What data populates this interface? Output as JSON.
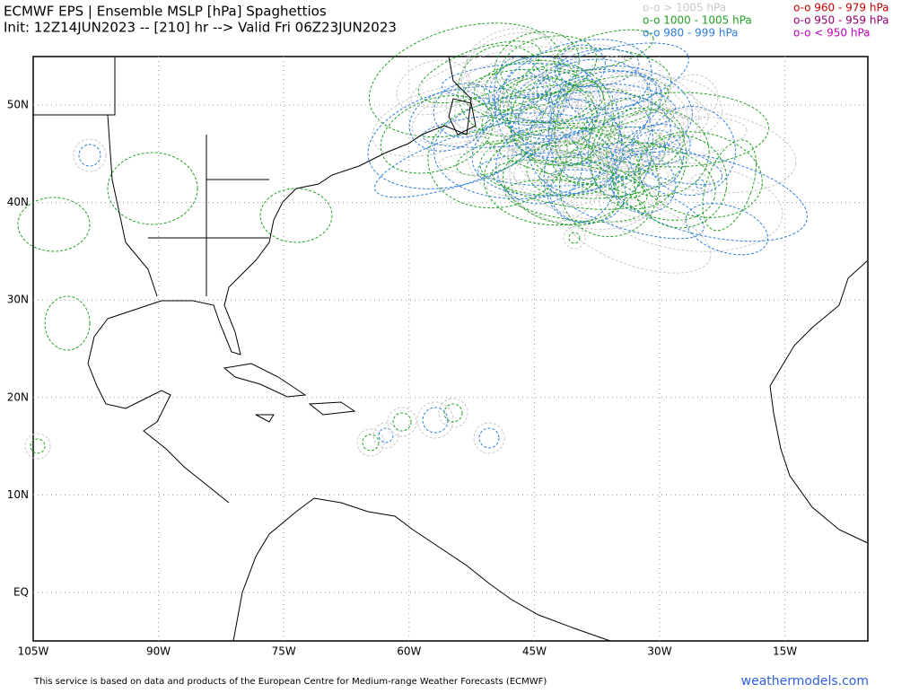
{
  "header": {
    "title": "ECMWF EPS | Ensemble MSLP [hPa] Spaghettios",
    "subtitle": "Init: 12Z14JUN2023 -- [210] hr --> Valid Fri 06Z23JUN2023"
  },
  "legend": [
    {
      "label": "o-o > 1005 hPa",
      "color": "#c8c8c8"
    },
    {
      "label": "o-o 1000 - 1005 hPa",
      "color": "#22a022"
    },
    {
      "label": "o-o 980 - 999 hPa",
      "color": "#2f7fd8"
    },
    {
      "label": "o-o 960 - 979 hPa",
      "color": "#c00000"
    },
    {
      "label": "o-o 950 - 959 hPa",
      "color": "#900070"
    },
    {
      "label": "o-o < 950 hPa",
      "color": "#c000c0"
    }
  ],
  "map": {
    "lon_labels": [
      "105W",
      "90W",
      "75W",
      "60W",
      "45W",
      "30W",
      "15W"
    ],
    "lat_labels": [
      "50N",
      "40N",
      "30N",
      "20N",
      "10N",
      "EQ"
    ]
  },
  "footer": {
    "notice": "This service is based on data and products of the European Centre for Medium-range Weather Forecasts (ECMWF)",
    "brand": "weathermodels.com"
  }
}
